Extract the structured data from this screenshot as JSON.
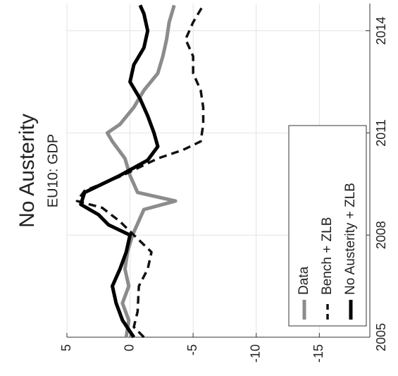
{
  "chart_data": {
    "type": "line",
    "title": "No Austerity",
    "subtitle": "EU10: GDP",
    "xlim": [
      2005,
      2014.8
    ],
    "xticks": [
      2005,
      2008,
      2011,
      2014
    ],
    "ylim": [
      -19,
      5
    ],
    "yticks": [
      5,
      0,
      -5,
      -10,
      -15
    ],
    "grid": true,
    "legend": "lower left",
    "rotated": true,
    "series": [
      {
        "name": "Data",
        "color": "#8c8c8c",
        "dash": "solid",
        "x": [
          2005,
          2005.5,
          2006,
          2006.5,
          2007,
          2007.5,
          2008,
          2008.5,
          2008.75,
          2009,
          2009.25,
          2009.75,
          2010.25,
          2010.75,
          2011,
          2011.25,
          2011.75,
          2012.25,
          2012.75,
          2013.25,
          2013.75,
          2014.25,
          2014.75
        ],
        "values": [
          0.3,
          0.1,
          0.6,
          0.1,
          0.4,
          0.2,
          -0.2,
          -0.8,
          -1.1,
          -3.6,
          -0.6,
          0,
          0.4,
          1.4,
          1.8,
          0.8,
          -0.3,
          -1.1,
          -2.2,
          -2.6,
          -2.9,
          -3.1,
          -3.5
        ]
      },
      {
        "name": "Bench + ZLB",
        "color": "#111111",
        "dash": "dashed",
        "x": [
          2005,
          2005.3,
          2005.75,
          2006.5,
          2007,
          2007.5,
          2008,
          2008.4,
          2008.8,
          2009,
          2009.3,
          2009.75,
          2010.25,
          2010.5,
          2010.75,
          2011.25,
          2011.75,
          2012.25,
          2012.75,
          2013.25,
          2013.75,
          2014.25,
          2014.75
        ],
        "values": [
          -1.1,
          -0.3,
          -0.6,
          -0.7,
          -1.4,
          -1.7,
          -0.3,
          0.8,
          2.2,
          4.2,
          3.6,
          0.6,
          -2.2,
          -4.2,
          -5.6,
          -5.8,
          -5.8,
          -5.6,
          -5,
          -5,
          -4.4,
          -5,
          -5.8
        ]
      },
      {
        "name": "No Austerity + ZLB",
        "color": "#000000",
        "dash": "solid",
        "x": [
          2005,
          2005.5,
          2006,
          2006.5,
          2007,
          2007.5,
          2008,
          2008.3,
          2008.6,
          2008.9,
          2009.25,
          2009.75,
          2010.2,
          2010.6,
          2011,
          2011.5,
          2012,
          2012.5,
          2013,
          2013.5,
          2014,
          2014.5,
          2014.75
        ],
        "values": [
          -0.3,
          0.6,
          1.1,
          1.4,
          0.8,
          0.3,
          0,
          1.7,
          2.5,
          3.9,
          3.6,
          0.8,
          -1.4,
          -2.2,
          -1.9,
          -1.4,
          -0.8,
          0,
          -0.3,
          -1.1,
          -1.4,
          -1.1,
          -0.8
        ]
      }
    ]
  }
}
